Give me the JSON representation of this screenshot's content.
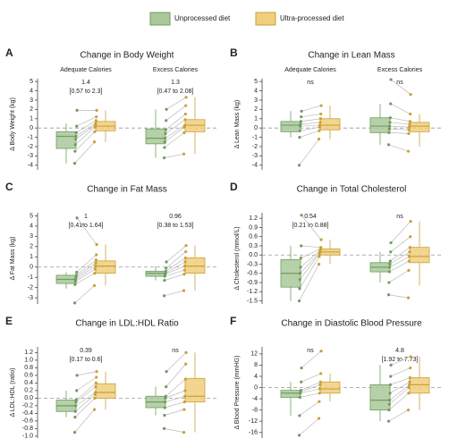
{
  "legend": [
    {
      "name": "Unprocessed diet",
      "color": "#a9c99b",
      "stroke": "#6f9c5f"
    },
    {
      "name": "Ultra-processed diet",
      "color": "#f0cf7c",
      "stroke": "#c9a03a"
    }
  ],
  "chart_data": [
    {
      "type": "box",
      "label": "A",
      "title": "Change in Body Weight",
      "ylabel": "Δ Body Weight (kg)",
      "ylim": [
        -4.5,
        5.3
      ],
      "yticks": [
        -4,
        -3,
        -2,
        -1,
        0,
        1,
        2,
        3,
        4,
        5
      ],
      "groups": [
        {
          "name": "Adequate Calories",
          "annotation": [
            "1.4",
            "[0.57 to 2.3]"
          ],
          "series": [
            {
              "box": {
                "whislo": -3.8,
                "q1": -2.2,
                "med": -0.9,
                "q3": -0.4,
                "whishi": 0.5
              },
              "points": [
                -3.8,
                -2.5,
                -1.8,
                -1.2,
                -0.9,
                -0.5,
                0.2,
                1.9
              ]
            },
            {
              "box": {
                "whislo": -1.5,
                "q1": -0.3,
                "med": 0.2,
                "q3": 0.7,
                "whishi": 1.9
              },
              "points": [
                -1.5,
                -0.4,
                0.1,
                0.3,
                0.5,
                0.8,
                1.2,
                1.9
              ]
            }
          ]
        },
        {
          "name": "Excess Calories",
          "annotation": [
            "1.3",
            "[0.47 to 2.08]"
          ],
          "series": [
            {
              "box": {
                "whislo": -3.2,
                "q1": -1.7,
                "med": -1.1,
                "q3": -0.1,
                "whishi": 2.0
              },
              "points": [
                -3.2,
                -2.1,
                -1.5,
                -1.1,
                -0.6,
                -0.2,
                0.8,
                2.0
              ]
            },
            {
              "box": {
                "whislo": -2.8,
                "q1": -0.4,
                "med": 0.3,
                "q3": 0.9,
                "whishi": 3.3
              },
              "points": [
                -2.8,
                -0.5,
                0.1,
                0.3,
                0.9,
                1.5,
                2.4,
                3.3
              ]
            }
          ]
        }
      ]
    },
    {
      "type": "box",
      "label": "B",
      "title": "Change in Lean Mass",
      "ylabel": "Δ Lean Mass (kg)",
      "ylim": [
        -4.5,
        5.3
      ],
      "yticks": [
        -4,
        -3,
        -2,
        -1,
        0,
        1,
        2,
        3,
        4,
        5
      ],
      "groups": [
        {
          "name": "Adequate Calories",
          "annotation": [
            "ns"
          ],
          "series": [
            {
              "box": {
                "whislo": -1.0,
                "q1": -0.4,
                "med": 0.3,
                "q3": 0.7,
                "whishi": 1.8
              },
              "points": [
                -4.0,
                -1.0,
                -0.3,
                0.2,
                0.4,
                0.7,
                1.2,
                1.8
              ]
            },
            {
              "box": {
                "whislo": -1.2,
                "q1": -0.2,
                "med": 0.3,
                "q3": 1.0,
                "whishi": 2.4
              },
              "points": [
                -1.2,
                -0.3,
                0.1,
                0.3,
                0.6,
                1.0,
                1.5,
                2.4
              ]
            }
          ]
        },
        {
          "name": "Excess Calories",
          "annotation": [
            "ns"
          ],
          "series": [
            {
              "box": {
                "whislo": -1.8,
                "q1": -0.5,
                "med": 0.2,
                "q3": 1.1,
                "whishi": 2.6
              },
              "points": [
                -1.8,
                -0.5,
                -0.1,
                0.2,
                0.6,
                1.1,
                2.6,
                5.2
              ]
            },
            {
              "box": {
                "whislo": -2.0,
                "q1": -0.4,
                "med": 0.2,
                "q3": 0.6,
                "whishi": 1.5
              },
              "points": [
                -2.5,
                -0.6,
                -0.2,
                0.1,
                0.4,
                0.7,
                1.5,
                3.6
              ]
            }
          ]
        }
      ]
    },
    {
      "type": "box",
      "label": "C",
      "title": "Change in Fat Mass",
      "ylabel": "Δ Fat Mass (kg)",
      "ylim": [
        -3.6,
        5.3
      ],
      "yticks": [
        -3,
        -2,
        -1,
        0,
        1,
        2,
        3,
        4,
        5
      ],
      "groups": [
        {
          "annotation": [
            "1",
            "[0.41to 1.64]"
          ],
          "series": [
            {
              "box": {
                "whislo": -2.1,
                "q1": -1.6,
                "med": -1.2,
                "q3": -0.8,
                "whishi": -0.5
              },
              "points": [
                -3.5,
                -1.7,
                -1.4,
                -1.2,
                -1.0,
                -0.8,
                -0.5,
                4.8
              ]
            },
            {
              "box": {
                "whislo": -1.8,
                "q1": -0.6,
                "med": 0.1,
                "q3": 0.6,
                "whishi": 2.2
              },
              "points": [
                -1.8,
                -0.6,
                -0.2,
                0.1,
                0.4,
                0.7,
                1.2,
                2.2
              ]
            }
          ]
        },
        {
          "annotation": [
            "0.96",
            "[0.38 to 1.53]"
          ],
          "series": [
            {
              "box": {
                "whislo": -1.3,
                "q1": -0.9,
                "med": -0.6,
                "q3": -0.4,
                "whishi": 0.1
              },
              "points": [
                -2.8,
                -1.3,
                -0.9,
                -0.7,
                -0.6,
                -0.4,
                -0.1,
                0.5
              ]
            },
            {
              "box": {
                "whislo": -2.3,
                "q1": -0.6,
                "med": 0.1,
                "q3": 0.9,
                "whishi": 2.1
              },
              "points": [
                -2.3,
                -0.7,
                -0.3,
                0.1,
                0.5,
                0.9,
                1.5,
                2.1
              ]
            }
          ]
        }
      ]
    },
    {
      "type": "box",
      "label": "D",
      "title": "Change in Total Cholesterol",
      "ylabel": "Δ Cholesterol (mmol/L)",
      "ylim": [
        -1.6,
        1.38
      ],
      "yticks": [
        -1.5,
        -1.2,
        -0.9,
        -0.6,
        -0.3,
        {
          "value": 0,
          "label": "0.0"
        },
        0.3,
        0.6,
        0.9,
        1.2
      ],
      "groups": [
        {
          "annotation": [
            "0.54",
            "[0.21 to 0.88]"
          ],
          "series": [
            {
              "box": {
                "whislo": -1.5,
                "q1": -1.05,
                "med": -0.6,
                "q3": -0.15,
                "whishi": 0.3
              },
              "points": [
                -1.5,
                -1.1,
                -0.8,
                -0.6,
                -0.4,
                -0.1,
                0.3,
                1.3
              ]
            },
            {
              "box": {
                "whislo": -0.3,
                "q1": 0.0,
                "med": 0.1,
                "q3": 0.2,
                "whishi": 0.5
              },
              "points": [
                -0.3,
                -0.05,
                0.05,
                0.1,
                0.15,
                0.2,
                0.25,
                0.5
              ]
            }
          ]
        },
        {
          "annotation": [
            "ns"
          ],
          "series": [
            {
              "box": {
                "whislo": -0.9,
                "q1": -0.55,
                "med": -0.4,
                "q3": -0.25,
                "whishi": 0.1
              },
              "points": [
                -1.3,
                -0.9,
                -0.55,
                -0.4,
                -0.3,
                -0.2,
                0.1,
                0.4
              ]
            },
            {
              "box": {
                "whislo": -1.0,
                "q1": -0.25,
                "med": -0.05,
                "q3": 0.25,
                "whishi": 1.1
              },
              "points": [
                -1.4,
                -0.5,
                -0.2,
                -0.05,
                0.1,
                0.25,
                0.6,
                1.1
              ]
            }
          ]
        }
      ]
    },
    {
      "type": "box",
      "label": "E",
      "title": "Change in LDL:HDL Ratio",
      "ylabel": "Δ LDL:HDL (ratio)",
      "ylim": [
        -1.05,
        1.35
      ],
      "yticks": [
        {
          "value": -1,
          "label": "-1.0"
        },
        -0.8,
        -0.6,
        -0.4,
        -0.2,
        {
          "value": 0,
          "label": "0.0"
        },
        0.2,
        0.4,
        0.6,
        0.8,
        {
          "value": 1,
          "label": "1.0"
        },
        1.2
      ],
      "groups": [
        {
          "annotation": [
            "0.39",
            "[0.17 to 0.6]"
          ],
          "series": [
            {
              "box": {
                "whislo": -0.5,
                "q1": -0.35,
                "med": -0.2,
                "q3": -0.05,
                "whishi": 0.2
              },
              "points": [
                -0.9,
                -0.5,
                -0.35,
                -0.2,
                -0.1,
                -0.05,
                0.2,
                0.6
              ]
            },
            {
              "box": {
                "whislo": -0.3,
                "q1": 0.0,
                "med": 0.15,
                "q3": 0.38,
                "whishi": 0.7
              },
              "points": [
                -0.3,
                0.0,
                0.1,
                0.15,
                0.3,
                0.4,
                0.55,
                0.7
              ]
            }
          ]
        },
        {
          "annotation": [
            "ns"
          ],
          "series": [
            {
              "box": {
                "whislo": -0.45,
                "q1": -0.25,
                "med": -0.1,
                "q3": 0.05,
                "whishi": 0.3
              },
              "points": [
                -0.8,
                -0.45,
                -0.25,
                -0.1,
                0.0,
                0.05,
                0.3,
                0.7
              ]
            },
            {
              "box": {
                "whislo": -0.9,
                "q1": -0.1,
                "med": 0.05,
                "q3": 0.52,
                "whishi": 1.2
              },
              "points": [
                -0.9,
                -0.3,
                -0.1,
                0.05,
                0.2,
                0.5,
                0.9,
                1.2
              ]
            }
          ]
        }
      ]
    },
    {
      "type": "box",
      "label": "F",
      "title": "Change in Diastolic Blood Pressure",
      "ylabel": "Δ Blood Pressure (mmHG)",
      "ylim": [
        -18,
        14.5
      ],
      "yticks": [
        -16,
        -12,
        -8,
        -4,
        0,
        4,
        8,
        12
      ],
      "groups": [
        {
          "annotation": [
            "ns"
          ],
          "series": [
            {
              "box": {
                "whislo": -10,
                "q1": -3.5,
                "med": -2,
                "q3": -1,
                "whishi": 2
              },
              "points": [
                -17,
                -10,
                -3.5,
                -2,
                -1.5,
                -1,
                2,
                7
              ]
            },
            {
              "box": {
                "whislo": -5,
                "q1": -2,
                "med": -0.5,
                "q3": 2,
                "whishi": 5
              },
              "points": [
                -11,
                -5,
                -2,
                -0.5,
                1,
                2,
                5,
                13
              ]
            }
          ]
        },
        {
          "annotation": [
            "4.8",
            "[1.92 to 7.73]"
          ],
          "series": [
            {
              "box": {
                "whislo": -12,
                "q1": -8,
                "med": -4.5,
                "q3": 1,
                "whishi": 8
              },
              "points": [
                -12,
                -8,
                -6,
                -4.5,
                -2,
                1,
                4,
                8
              ]
            },
            {
              "box": {
                "whislo": -8,
                "q1": -2,
                "med": 1,
                "q3": 3.5,
                "whishi": 11
              },
              "points": [
                -8,
                -2,
                0,
                1,
                2,
                3.5,
                7,
                11
              ]
            }
          ]
        }
      ]
    }
  ]
}
